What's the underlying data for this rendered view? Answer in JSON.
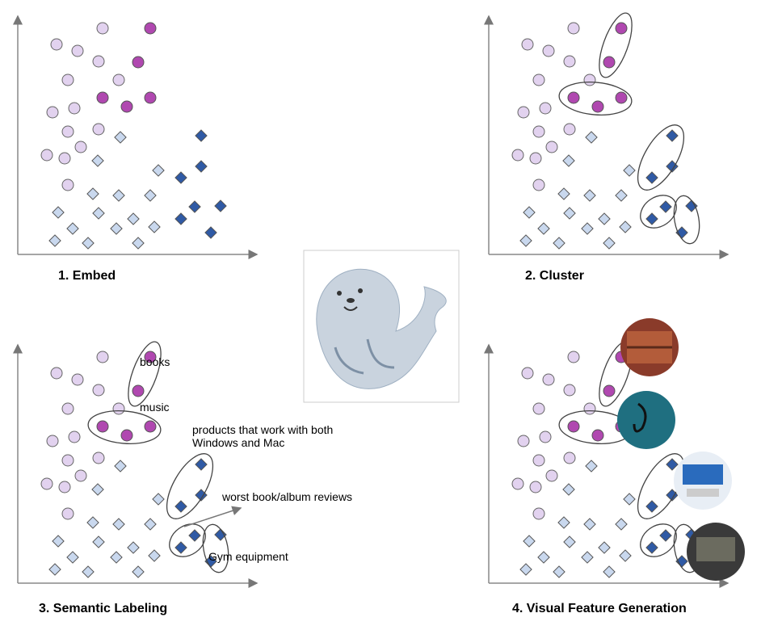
{
  "panels": [
    {
      "caption": "1. Embed"
    },
    {
      "caption": "2. Cluster"
    },
    {
      "caption": "3. Semantic Labeling",
      "labels": [
        "books",
        "music",
        "products that work with both",
        "Windows and Mac",
        "worst book/album reviews",
        "Gym equipment"
      ]
    },
    {
      "caption": "4. Visual Feature Generation"
    }
  ]
}
